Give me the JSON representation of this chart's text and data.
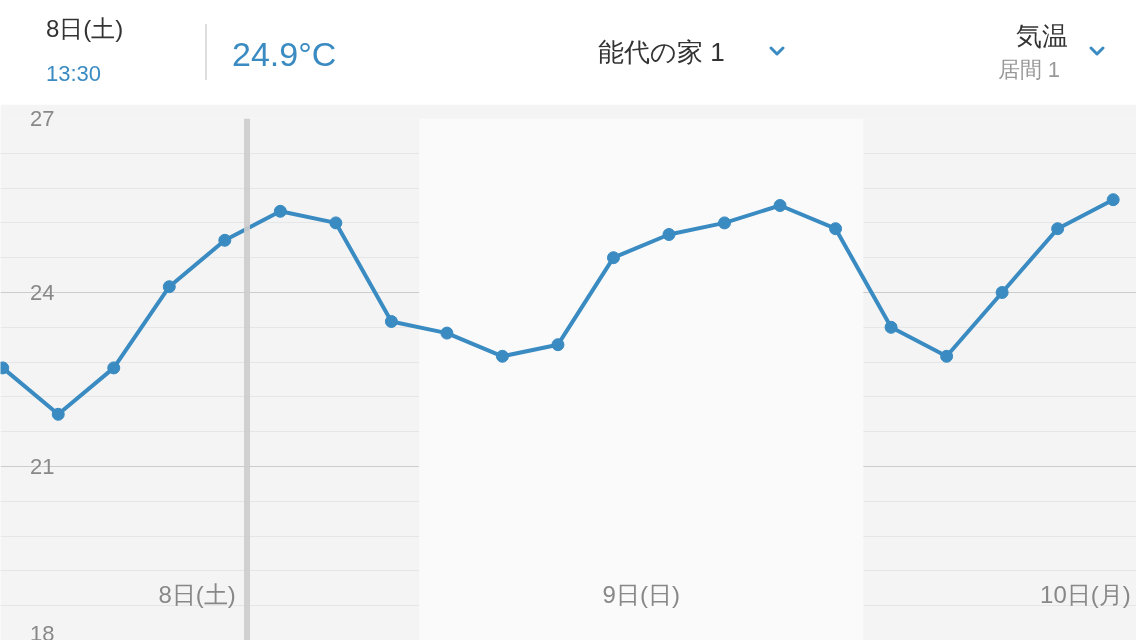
{
  "chart_data": {
    "type": "line",
    "title": "能代の家 1",
    "annotations": [
      "8日(土)",
      "13:30",
      "24.9°C",
      "気温",
      "居間 1",
      "8日(土)",
      "9日(日)",
      "10日(月)"
    ],
    "categories": [
      null,
      null,
      null,
      null,
      null,
      null,
      null,
      null,
      null,
      null,
      null,
      null,
      null,
      null,
      null,
      null,
      null,
      null,
      null,
      null,
      null
    ],
    "series": [
      {
        "color": "#3a8bc2",
        "values": [
          22.7,
          21.9,
          22.7,
          24.1,
          24.9,
          25.4,
          25.2,
          23.5,
          23.3,
          22.9,
          23.1,
          24.6,
          25.0,
          25.2,
          25.5,
          25.1,
          23.4,
          22.9,
          24.0,
          25.1,
          25.6
        ]
      }
    ],
    "ylim": [
      18,
      27
    ],
    "yticks": [
      18,
      21,
      24,
      27
    ],
    "grid": "y",
    "marker": "circle",
    "line_style": "solid"
  }
}
